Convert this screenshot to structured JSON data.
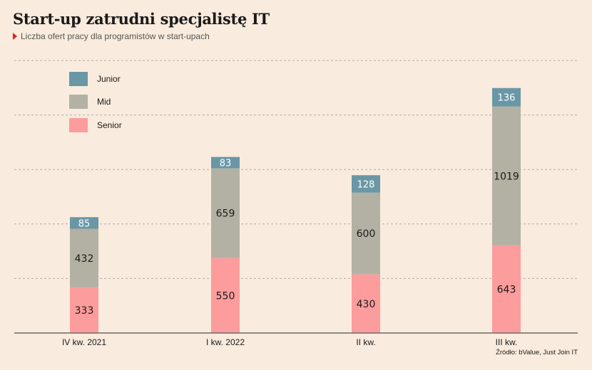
{
  "title": "Start-up zatrudni specjalistę IT",
  "subtitle": "Liczba ofert pracy dla programistów w start-upach",
  "source": "Źródło: bValue, Just Join IT",
  "colors": {
    "background": "#f9ebdd",
    "junior": "#6a97a6",
    "mid": "#b3b1a4",
    "senior": "#fd9c9c",
    "accent": "#e2231a"
  },
  "chart_data": {
    "type": "bar",
    "stacked": true,
    "categories": [
      "IV kw. 2021",
      "I kw. 2022",
      "II kw.",
      "III kw."
    ],
    "series": [
      {
        "name": "Senior",
        "values": [
          333,
          550,
          430,
          643
        ]
      },
      {
        "name": "Mid",
        "values": [
          432,
          659,
          600,
          1019
        ]
      },
      {
        "name": "Junior",
        "values": [
          85,
          83,
          128,
          136
        ]
      }
    ],
    "legend_order": [
      "Junior",
      "Mid",
      "Senior"
    ],
    "legend_position": "top-left",
    "ylim": [
      0,
      2000
    ],
    "grid": true,
    "y_tick_labels_shown": false,
    "data_labels": true
  }
}
